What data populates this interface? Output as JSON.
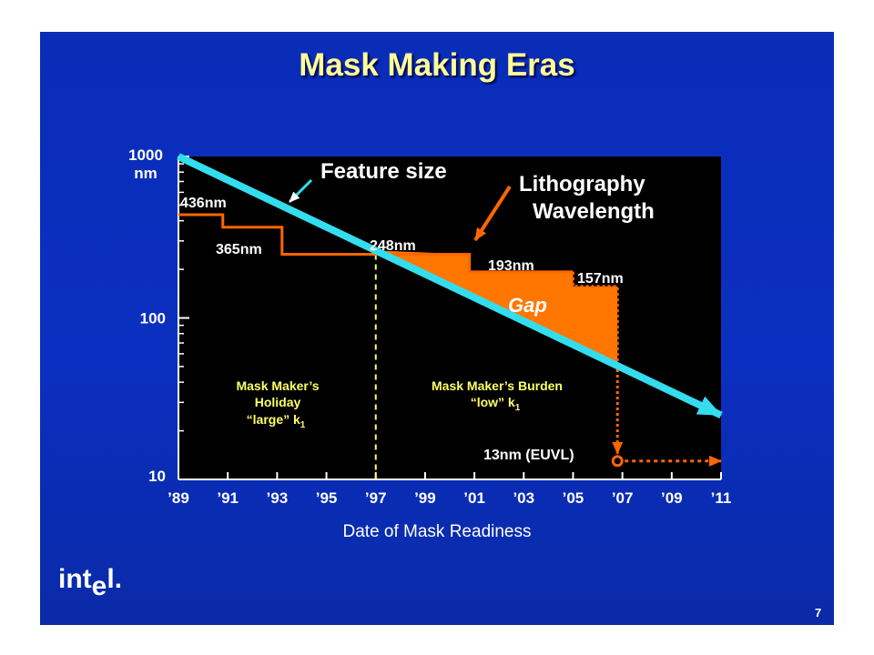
{
  "slide": {
    "title": "Mask Making Eras",
    "slide_number": "7",
    "logo_text_a": "int",
    "logo_text_b": "e",
    "logo_text_c": "l",
    "logo_dot": "."
  },
  "colors": {
    "background": "#0a2db8",
    "plot_bg": "#000000",
    "feature_line": "#33ddee",
    "wavelength": "#ff6600",
    "gap_fill": "#ff7700",
    "era_text": "#ffff66",
    "title": "#ffff99"
  },
  "chart_data": {
    "type": "line",
    "title": "Mask Making Eras",
    "xlabel": "Date of Mask Readiness",
    "ylabel": "",
    "x_scale": "linear",
    "y_scale": "log",
    "xlim": [
      1989,
      2011
    ],
    "ylim": [
      10,
      1000
    ],
    "x_tick_labels": [
      "’89",
      "’91",
      "’93",
      "’95",
      "’97",
      "’99",
      "’01",
      "’03",
      "’05",
      "’07",
      "’09",
      "’11"
    ],
    "x_tick_values": [
      1989,
      1991,
      1993,
      1995,
      1997,
      1999,
      2001,
      2003,
      2005,
      2007,
      2009,
      2011
    ],
    "y_tick_labels": [
      "1000",
      "nm",
      "100",
      "10"
    ],
    "series": [
      {
        "name": "Feature size",
        "style": "line-arrow",
        "points": [
          [
            1989,
            1000
          ],
          [
            2011,
            25
          ]
        ]
      },
      {
        "name": "Lithography Wavelength",
        "style": "step",
        "points": [
          [
            1989,
            436
          ],
          [
            1990.8,
            436
          ],
          [
            1990.8,
            365
          ],
          [
            1993.2,
            365
          ],
          [
            1993.2,
            248
          ],
          [
            2000.8,
            248
          ],
          [
            2000.8,
            193
          ],
          [
            2005,
            193
          ],
          [
            2005,
            157
          ],
          [
            2006.8,
            157
          ],
          [
            2006.8,
            13
          ]
        ]
      }
    ],
    "euvl_target": {
      "label": "13nm (EUVL)",
      "x": 2006.8,
      "y": 13,
      "arrow_to_x": 2011
    },
    "era_divider_x": 1997,
    "annotations": {
      "feature_size": "Feature size",
      "litho_line1": "Lithography",
      "litho_line2": "Wavelength",
      "w436": "436nm",
      "w365": "365nm",
      "w248": "248nm",
      "w193": "193nm",
      "w157": "157nm",
      "gap": "Gap",
      "holiday_line1": "Mask Maker’s",
      "holiday_line2": "Holiday",
      "holiday_line3": "“large” k",
      "burden_line1": "Mask Maker’s Burden",
      "burden_line2": "“low” k",
      "k_subscript": "1"
    }
  }
}
